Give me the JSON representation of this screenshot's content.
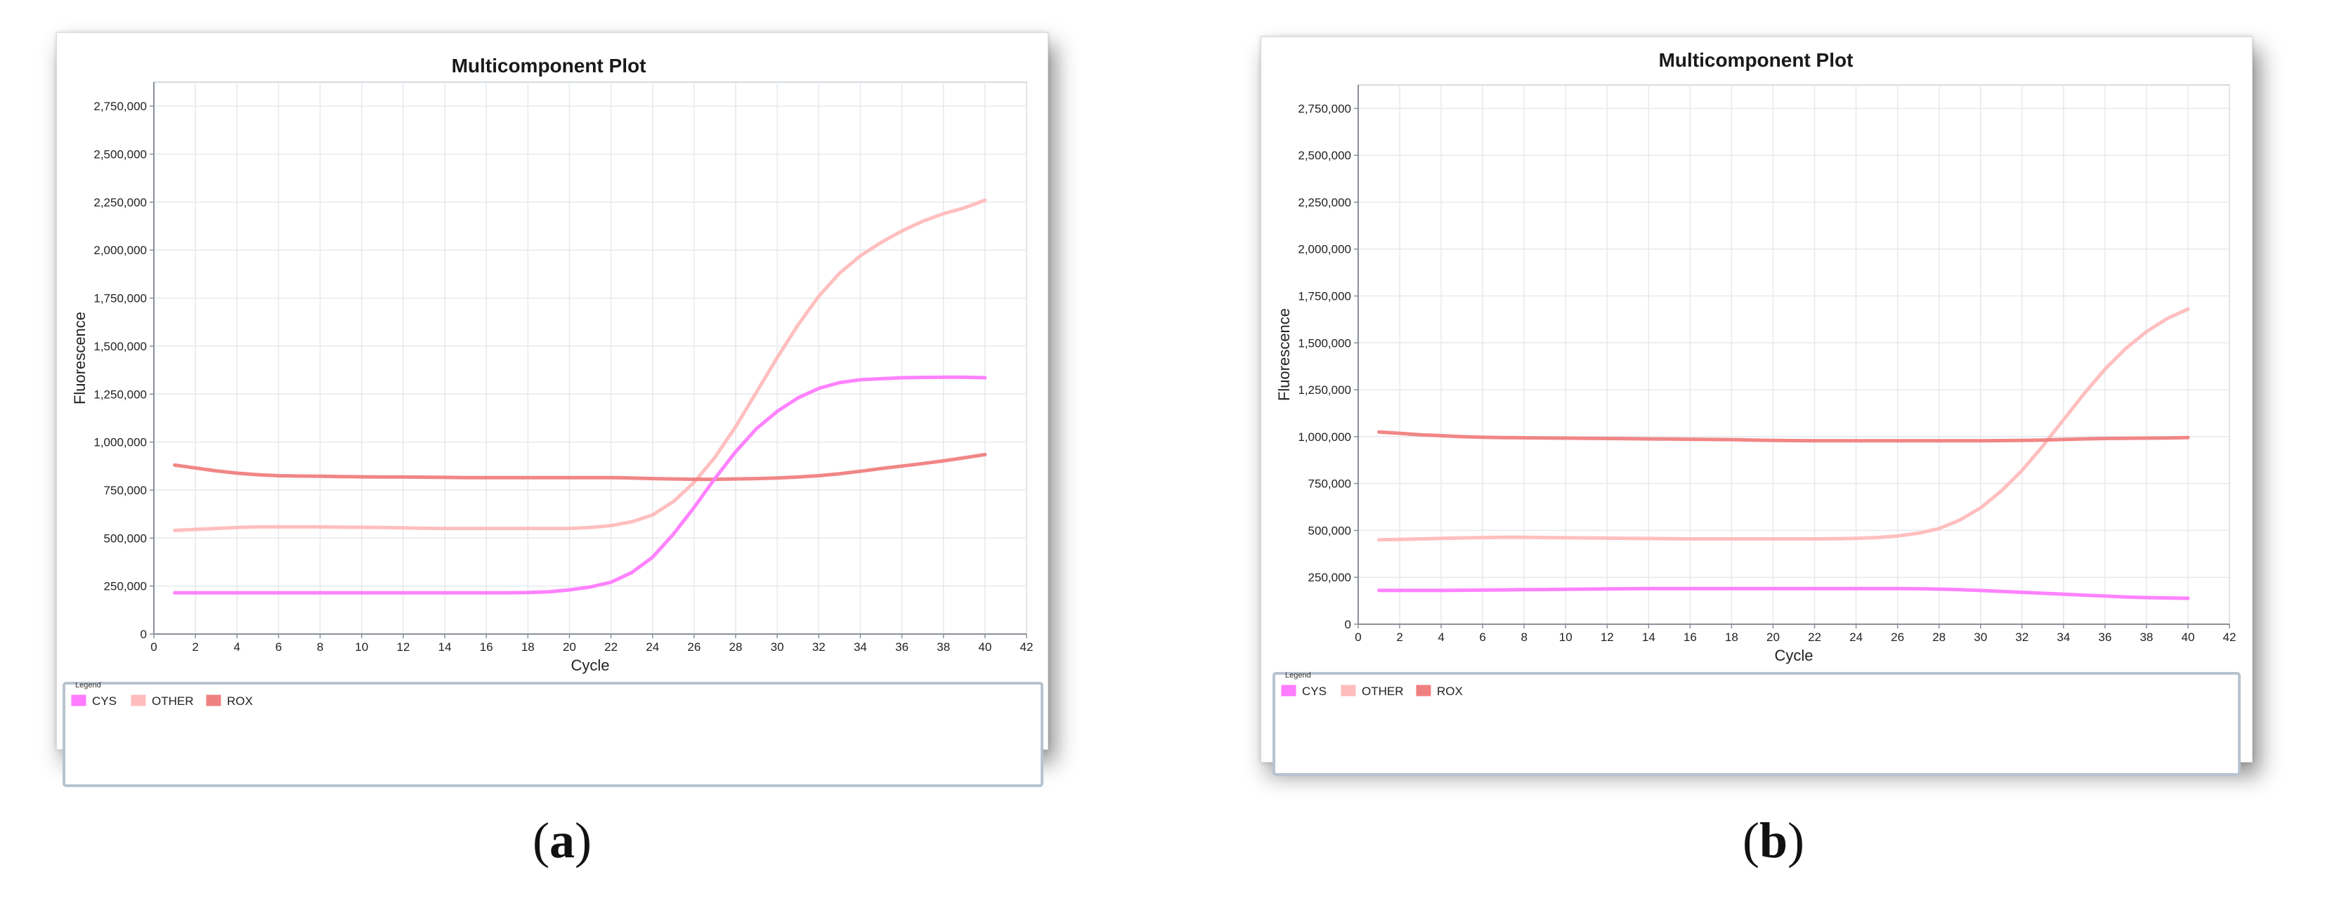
{
  "panels": [
    {
      "id": "a",
      "caption_letter": "a",
      "legend_title": "Legend",
      "chart_data": {
        "type": "line",
        "title": "Multicomponent Plot",
        "xlabel": "Cycle",
        "ylabel": "Fluorescence",
        "xlim": [
          0,
          42
        ],
        "ylim": [
          0,
          2875000
        ],
        "xticks": [
          0,
          2,
          4,
          6,
          8,
          10,
          12,
          14,
          16,
          18,
          20,
          22,
          24,
          26,
          28,
          30,
          32,
          34,
          36,
          38,
          40,
          42
        ],
        "yticks": [
          0,
          250000,
          500000,
          750000,
          1000000,
          1250000,
          1500000,
          1750000,
          2000000,
          2250000,
          2500000,
          2750000
        ],
        "ytick_labels": [
          "0",
          "250,000",
          "500,000",
          "750,000",
          "1,000,000",
          "1,250,000",
          "1,500,000",
          "1,750,000",
          "2,000,000",
          "2,250,000",
          "2,500,000",
          "2,750,000"
        ],
        "grid": true,
        "legend_placement": "bottom",
        "x": [
          1,
          2,
          3,
          4,
          5,
          6,
          7,
          8,
          9,
          10,
          11,
          12,
          13,
          14,
          15,
          16,
          17,
          18,
          19,
          20,
          21,
          22,
          23,
          24,
          25,
          26,
          27,
          28,
          29,
          30,
          31,
          32,
          33,
          34,
          35,
          36,
          37,
          38,
          39,
          40
        ],
        "series": [
          {
            "name": "CYS",
            "color": "#ff7bff",
            "values": [
              215000,
              215000,
              215000,
              215000,
              215000,
              215000,
              215000,
              215000,
              215000,
              215000,
              215000,
              215000,
              215000,
              215000,
              215000,
              215000,
              215000,
              216000,
              220000,
              230000,
              245000,
              270000,
              320000,
              400000,
              520000,
              660000,
              810000,
              950000,
              1070000,
              1160000,
              1230000,
              1280000,
              1310000,
              1325000,
              1330000,
              1335000,
              1337000,
              1338000,
              1338000,
              1335000
            ]
          },
          {
            "name": "OTHER",
            "color": "#ffbcbc",
            "values": [
              540000,
              545000,
              550000,
              555000,
              558000,
              558000,
              558000,
              558000,
              557000,
              556000,
              555000,
              553000,
              551000,
              550000,
              550000,
              550000,
              550000,
              550000,
              550000,
              550000,
              555000,
              565000,
              585000,
              620000,
              690000,
              790000,
              920000,
              1080000,
              1260000,
              1440000,
              1610000,
              1760000,
              1880000,
              1970000,
              2040000,
              2100000,
              2150000,
              2190000,
              2220000,
              2260000
            ]
          },
          {
            "name": "ROX",
            "color": "#f08080",
            "values": [
              880000,
              865000,
              850000,
              838000,
              830000,
              825000,
              823000,
              822000,
              820000,
              819000,
              818000,
              818000,
              817000,
              816000,
              815000,
              815000,
              815000,
              815000,
              815000,
              815000,
              815000,
              815000,
              813000,
              810000,
              808000,
              806000,
              806000,
              808000,
              810000,
              813000,
              818000,
              825000,
              835000,
              848000,
              862000,
              875000,
              888000,
              902000,
              918000,
              935000
            ]
          }
        ]
      }
    },
    {
      "id": "b",
      "caption_letter": "b",
      "legend_title": "Legend",
      "chart_data": {
        "type": "line",
        "title": "Multicomponent Plot",
        "xlabel": "Cycle",
        "ylabel": "Fluorescence",
        "xlim": [
          0,
          42
        ],
        "ylim": [
          0,
          2875000
        ],
        "xticks": [
          0,
          2,
          4,
          6,
          8,
          10,
          12,
          14,
          16,
          18,
          20,
          22,
          24,
          26,
          28,
          30,
          32,
          34,
          36,
          38,
          40,
          42
        ],
        "yticks": [
          0,
          250000,
          500000,
          750000,
          1000000,
          1250000,
          1500000,
          1750000,
          2000000,
          2250000,
          2500000,
          2750000
        ],
        "ytick_labels": [
          "0",
          "250,000",
          "500,000",
          "750,000",
          "1,000,000",
          "1,250,000",
          "1,500,000",
          "1,750,000",
          "2,000,000",
          "2,250,000",
          "2,500,000",
          "2,750,000"
        ],
        "grid": true,
        "legend_placement": "bottom",
        "x": [
          1,
          2,
          3,
          4,
          5,
          6,
          7,
          8,
          9,
          10,
          11,
          12,
          13,
          14,
          15,
          16,
          17,
          18,
          19,
          20,
          21,
          22,
          23,
          24,
          25,
          26,
          27,
          28,
          29,
          30,
          31,
          32,
          33,
          34,
          35,
          36,
          37,
          38,
          39,
          40
        ],
        "series": [
          {
            "name": "CYS",
            "color": "#ff7bff",
            "values": [
              180000,
              180000,
              180000,
              180000,
              181000,
              182000,
              183000,
              184000,
              185000,
              186000,
              187000,
              188000,
              189000,
              190000,
              190000,
              190000,
              190000,
              190000,
              190000,
              190000,
              190000,
              190000,
              190000,
              190000,
              190000,
              190000,
              189000,
              187000,
              184000,
              180000,
              175000,
              170000,
              165000,
              160000,
              155000,
              150000,
              145000,
              142000,
              140000,
              138000
            ]
          },
          {
            "name": "OTHER",
            "color": "#ffbcbc",
            "values": [
              450000,
              452000,
              455000,
              458000,
              460000,
              462000,
              463000,
              463000,
              462000,
              461000,
              460000,
              459000,
              458000,
              457000,
              456000,
              455000,
              455000,
              455000,
              455000,
              455000,
              455000,
              455000,
              456000,
              458000,
              462000,
              470000,
              485000,
              510000,
              555000,
              620000,
              710000,
              820000,
              950000,
              1090000,
              1230000,
              1360000,
              1470000,
              1560000,
              1630000,
              1680000
            ]
          },
          {
            "name": "ROX",
            "color": "#f08080",
            "values": [
              1025000,
              1018000,
              1010000,
              1005000,
              1000000,
              997000,
              995000,
              994000,
              993000,
              992000,
              991000,
              990000,
              989000,
              988000,
              987000,
              986000,
              985000,
              984000,
              982000,
              980000,
              979000,
              978000,
              978000,
              978000,
              978000,
              978000,
              978000,
              978000,
              978000,
              978000,
              979000,
              980000,
              982000,
              985000,
              988000,
              990000,
              991000,
              992000,
              993000,
              995000
            ]
          }
        ]
      }
    }
  ]
}
